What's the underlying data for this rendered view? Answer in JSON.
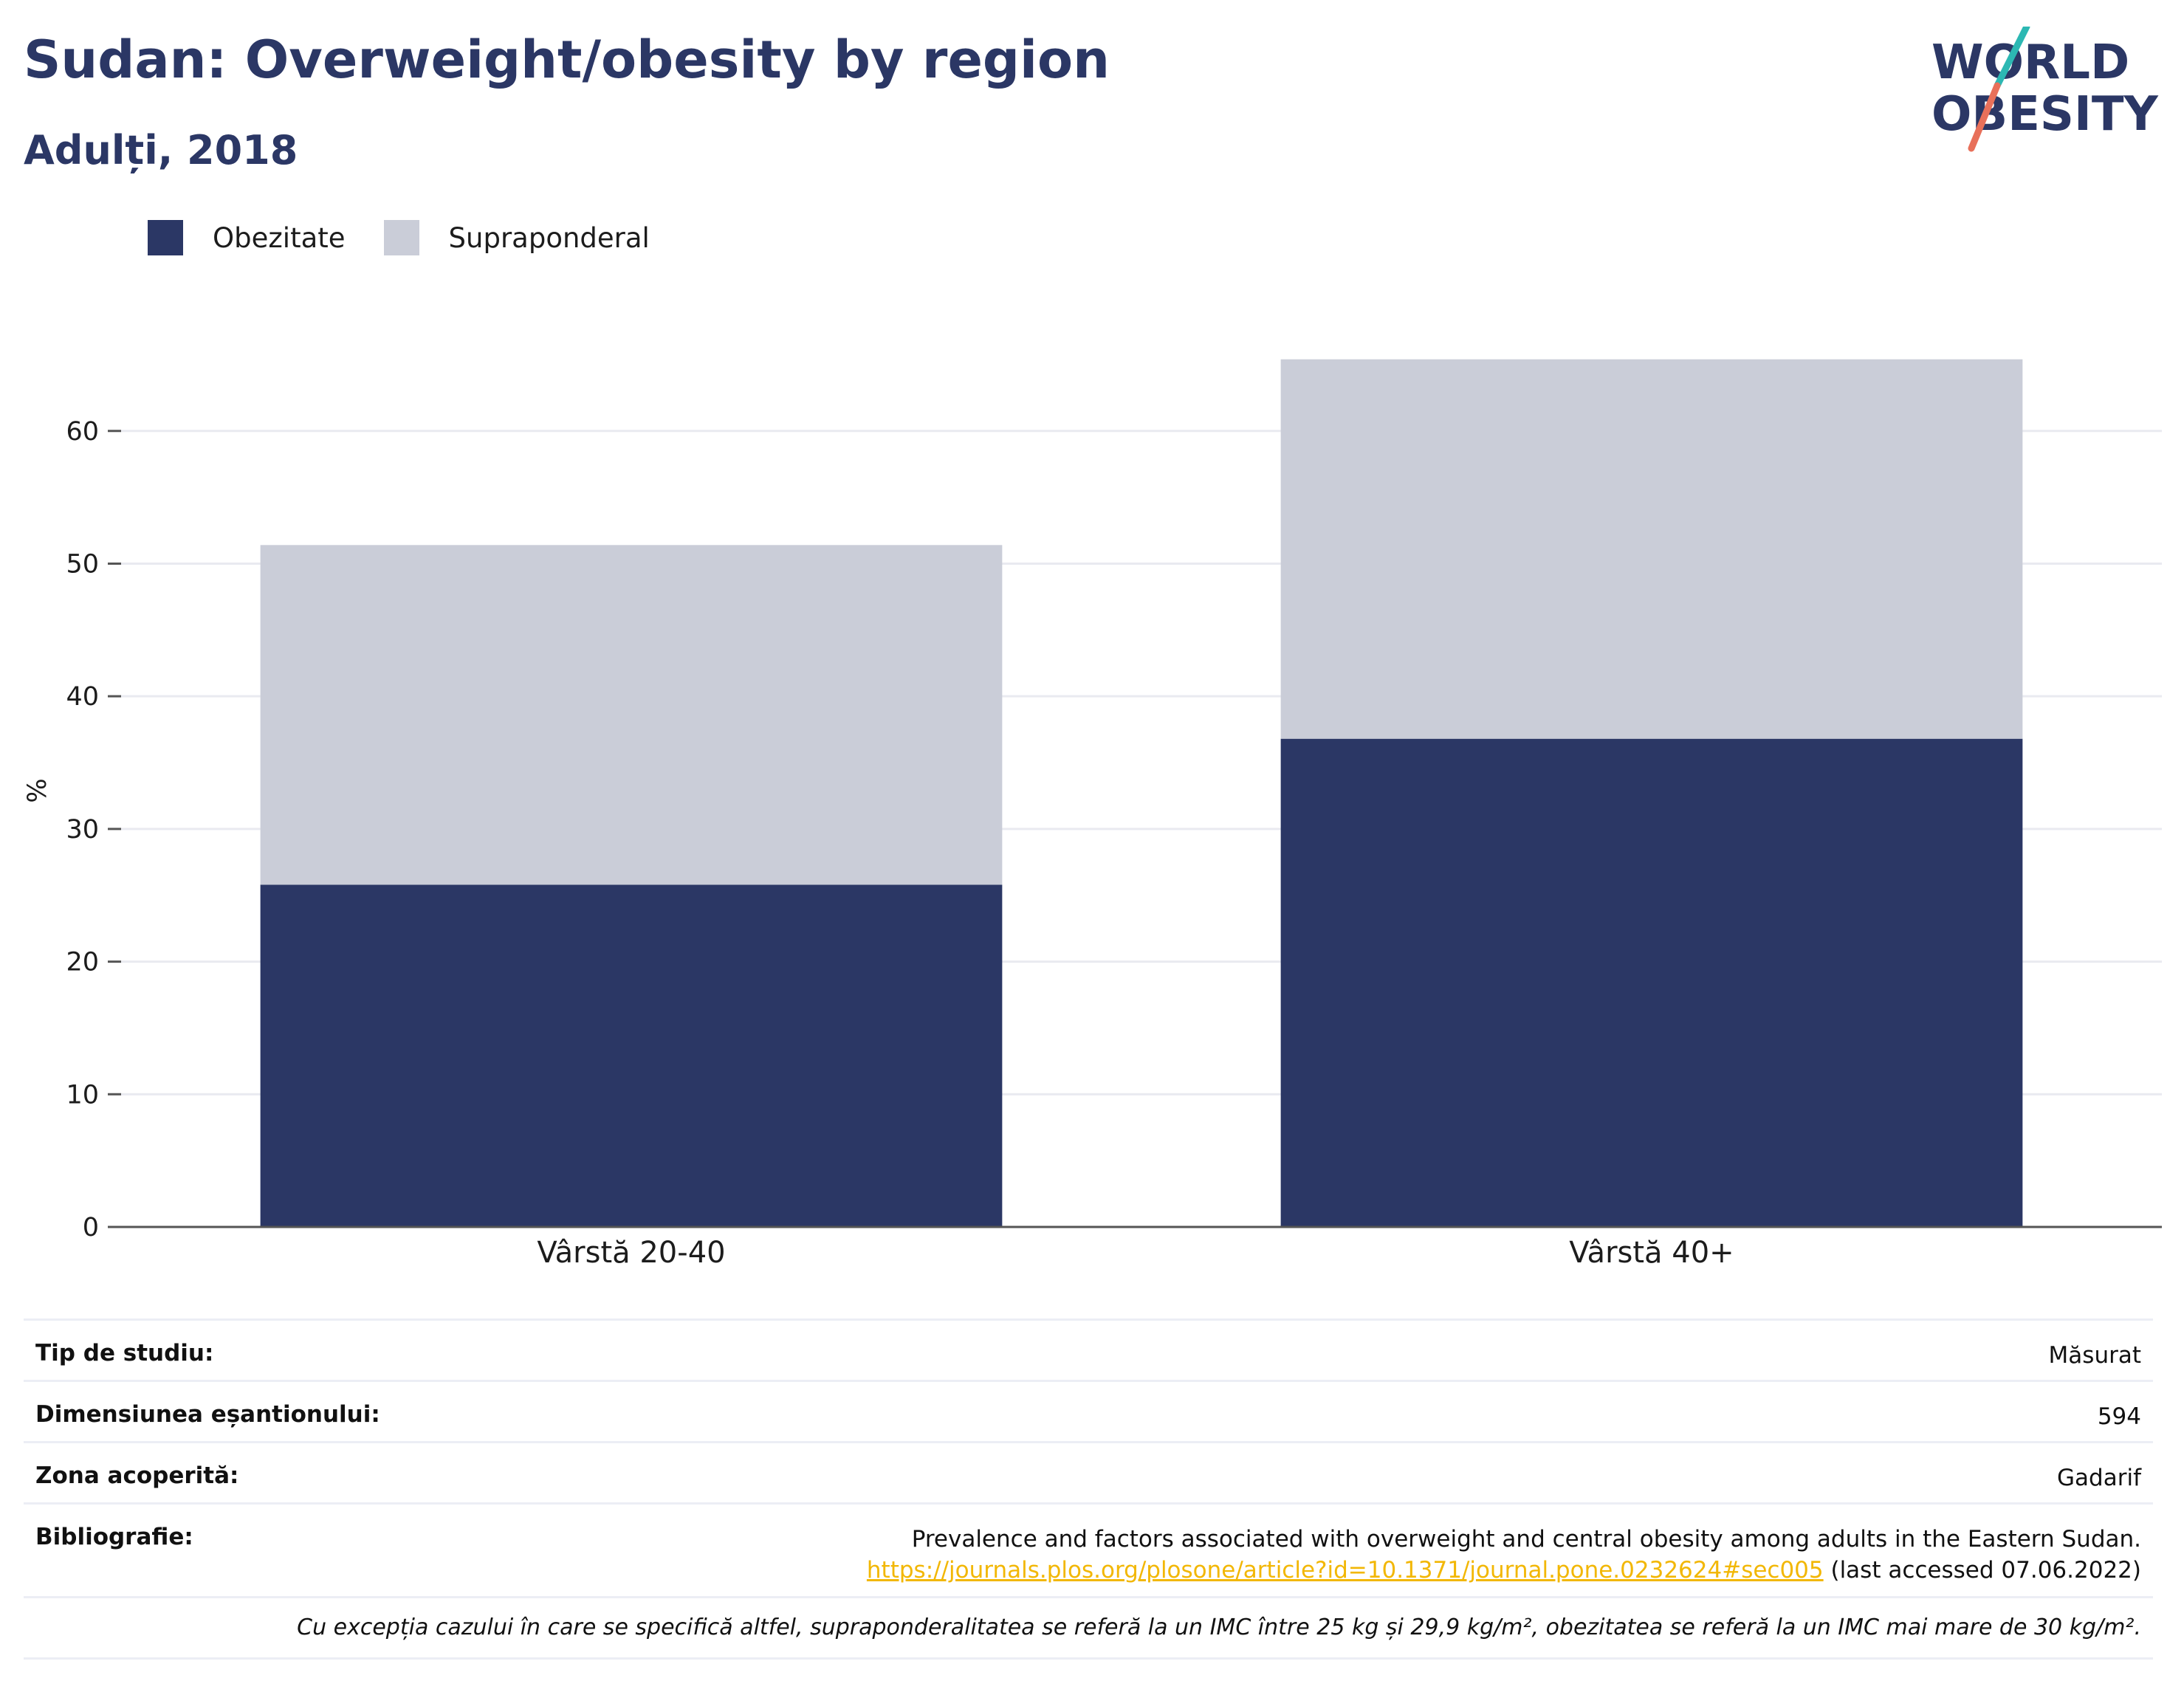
{
  "header": {
    "title": "Sudan: Overweight/obesity by region",
    "subtitle": "Adulți, 2018"
  },
  "logo": {
    "line1": "WORLD",
    "line2": "OBESITY",
    "colors": {
      "text": "#2b3765",
      "slash_top": "#2cb8b3",
      "slash_bottom": "#e8705a"
    }
  },
  "legend": {
    "items": [
      {
        "label": "Obezitate",
        "color": "#2b3765"
      },
      {
        "label": "Supraponderal",
        "color": "#cacdd8"
      }
    ]
  },
  "chart_data": {
    "type": "bar",
    "stacked": true,
    "categories": [
      "Vârstă 20-40",
      "Vârstă 40+"
    ],
    "series": [
      {
        "name": "Obezitate",
        "values": [
          25.8,
          36.8
        ],
        "color": "#2b3765"
      },
      {
        "name": "Supraponderal",
        "values": [
          25.6,
          28.6
        ],
        "color": "#cacdd8"
      }
    ],
    "ylabel": "%",
    "ylim": [
      0,
      68
    ],
    "yticks": [
      0,
      10,
      20,
      30,
      40,
      50,
      60
    ],
    "grid": true,
    "legend_position": "top-left"
  },
  "info": {
    "rows": [
      {
        "label": "Tip de studiu:",
        "value": "Măsurat"
      },
      {
        "label": "Dimensiunea eșantionului:",
        "value": "594"
      },
      {
        "label": "Zona acoperită:",
        "value": "Gadarif"
      }
    ],
    "bibliography": {
      "label": "Bibliografie:",
      "text": "Prevalence and factors associated with overweight and central obesity among adults in the Eastern Sudan.",
      "link": "https://journals.plos.org/plosone/article?id=10.1371/journal.pone.0232624#sec005",
      "accessed": " (last accessed 07.06.2022)"
    },
    "footnote": "Cu excepția cazului în care se specifică altfel, supraponderalitatea se referă la un IMC între 25 kg și 29,9 kg/m², obezitatea se referă la un IMC mai mare de 30 kg/m²."
  }
}
